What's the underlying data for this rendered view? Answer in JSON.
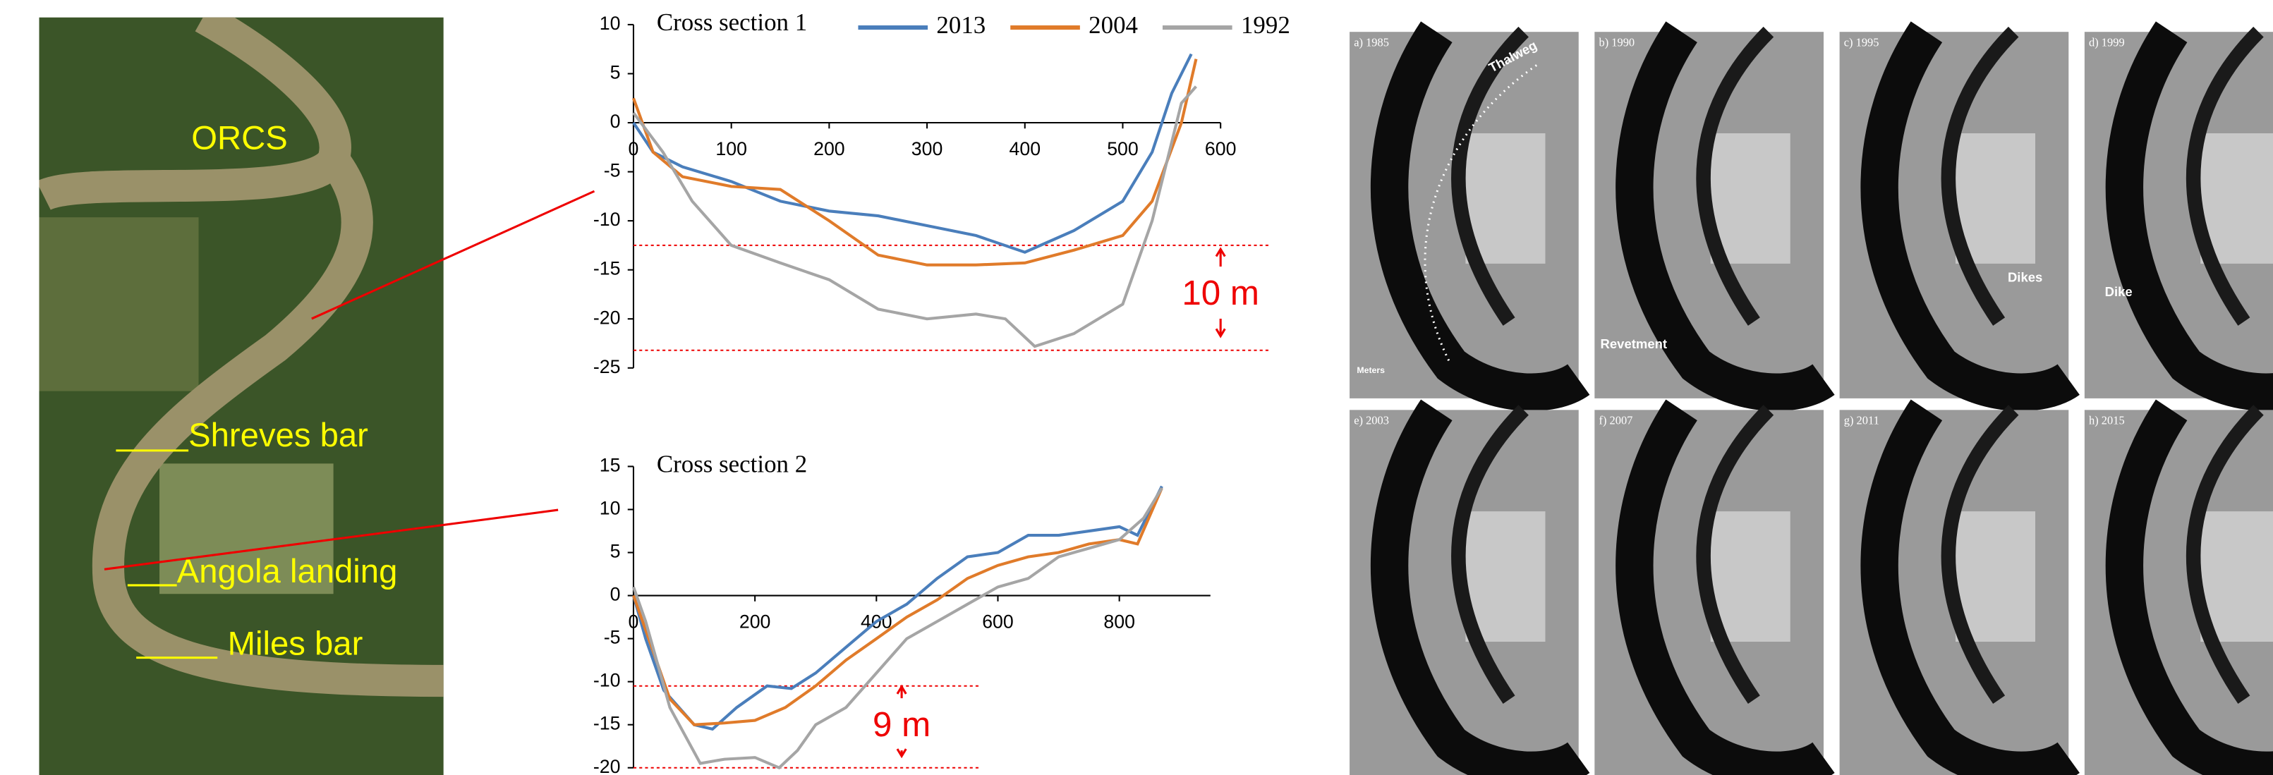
{
  "map": {
    "labels": [
      "ORCS",
      "Shreves bar",
      "Angola landing",
      "Miles bar"
    ]
  },
  "chart_data": [
    {
      "type": "line",
      "title": "Cross section 1",
      "xlim": [
        0,
        600
      ],
      "xticks": [
        0,
        100,
        200,
        300,
        400,
        500,
        600
      ],
      "ylim": [
        -25,
        10
      ],
      "yticks": [
        -25,
        -20,
        -15,
        -10,
        -5,
        0,
        5,
        10
      ],
      "legend": "top",
      "reference_lines": [
        -12.5,
        -23.2
      ],
      "annotation": "10 m",
      "series": [
        {
          "name": "2013",
          "color": "#4a7ebb",
          "x": [
            0,
            20,
            50,
            100,
            150,
            200,
            250,
            300,
            350,
            400,
            450,
            500,
            530,
            550,
            570
          ],
          "values": [
            0,
            -3,
            -4.5,
            -6,
            -8,
            -9,
            -9.5,
            -10.5,
            -11.5,
            -13.2,
            -11,
            -8,
            -3,
            3,
            7
          ]
        },
        {
          "name": "2004",
          "color": "#e07b2a",
          "x": [
            0,
            20,
            50,
            100,
            150,
            200,
            250,
            300,
            350,
            400,
            450,
            500,
            530,
            560,
            575
          ],
          "values": [
            2.5,
            -3,
            -5.5,
            -6.5,
            -6.8,
            -10,
            -13.5,
            -14.5,
            -14.5,
            -14.3,
            -13,
            -11.5,
            -8,
            0,
            6.5
          ]
        },
        {
          "name": "1992",
          "color": "#a5a5a5",
          "x": [
            0,
            30,
            60,
            100,
            150,
            200,
            250,
            300,
            350,
            380,
            410,
            450,
            500,
            530,
            560,
            575
          ],
          "values": [
            1,
            -3,
            -8,
            -12.5,
            -14.3,
            -16,
            -19,
            -20,
            -19.5,
            -20,
            -22.8,
            -21.5,
            -18.5,
            -10,
            2,
            3.7
          ]
        }
      ]
    },
    {
      "type": "line",
      "title": "Cross section 2",
      "xlim": [
        0,
        950
      ],
      "xticks": [
        0,
        200,
        400,
        600,
        800
      ],
      "ylim": [
        -20,
        15
      ],
      "yticks": [
        -20,
        -15,
        -10,
        -5,
        0,
        5,
        10,
        15
      ],
      "reference_lines": [
        -10.5,
        -20
      ],
      "annotation": "9 m",
      "series": [
        {
          "color": "#4a7ebb",
          "x": [
            0,
            20,
            50,
            100,
            130,
            170,
            220,
            260,
            300,
            350,
            400,
            450,
            500,
            550,
            600,
            650,
            700,
            750,
            800,
            830,
            870
          ],
          "values": [
            0,
            -5,
            -11,
            -15,
            -15.5,
            -13,
            -10.5,
            -10.8,
            -9,
            -6,
            -3,
            -1,
            2,
            4.5,
            5,
            7,
            7,
            7.5,
            8,
            7,
            12.7
          ]
        },
        {
          "color": "#e07b2a",
          "x": [
            0,
            30,
            60,
            100,
            150,
            200,
            250,
            300,
            350,
            400,
            450,
            500,
            550,
            600,
            650,
            700,
            750,
            800,
            830,
            870
          ],
          "values": [
            0,
            -6,
            -12,
            -15,
            -14.8,
            -14.5,
            -13,
            -10.5,
            -7.5,
            -5,
            -2.5,
            -0.5,
            2,
            3.5,
            4.5,
            5,
            6,
            6.5,
            6,
            12.5
          ]
        },
        {
          "color": "#a5a5a5",
          "x": [
            0,
            20,
            60,
            110,
            150,
            200,
            240,
            270,
            300,
            350,
            400,
            450,
            500,
            550,
            600,
            650,
            700,
            750,
            800,
            840,
            870
          ],
          "values": [
            1,
            -3,
            -13,
            -19.5,
            -19,
            -18.8,
            -20,
            -18,
            -15,
            -13,
            -9,
            -5,
            -3,
            -1,
            1,
            2,
            4.5,
            5.5,
            6.5,
            9,
            12.5
          ]
        }
      ]
    }
  ],
  "panels": {
    "labels": [
      "a) 1985",
      "b) 1990",
      "c) 1995",
      "d) 1999",
      "e) 2003",
      "f) 2007",
      "g) 2011",
      "h) 2015"
    ],
    "notes": [
      "Thalweg",
      "Revetment",
      "Dikes",
      "Dike",
      "Meters"
    ]
  }
}
